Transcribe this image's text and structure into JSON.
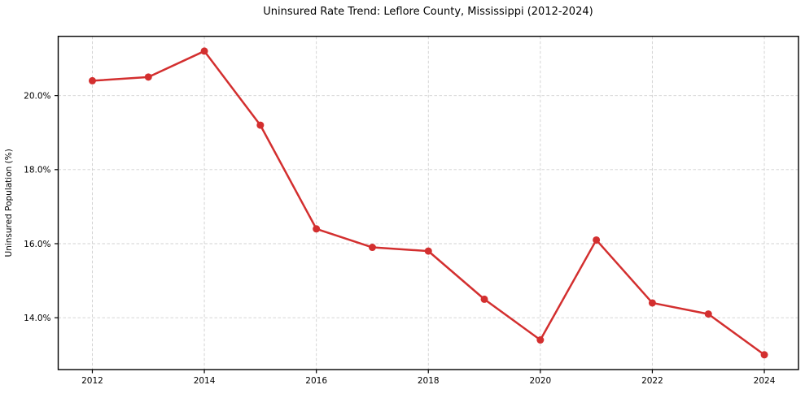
{
  "chart_data": {
    "type": "line",
    "title": "Uninsured Rate Trend: Leflore County, Mississippi (2012-2024)",
    "xlabel": "",
    "ylabel": "Uninsured Population (%)",
    "x": [
      2012,
      2013,
      2014,
      2015,
      2016,
      2017,
      2018,
      2019,
      2020,
      2021,
      2022,
      2023,
      2024
    ],
    "values": [
      20.4,
      20.5,
      21.2,
      19.2,
      16.4,
      15.9,
      15.8,
      14.5,
      13.4,
      16.1,
      14.4,
      14.1,
      13.0
    ],
    "series": [
      {
        "name": "Uninsured rate",
        "values": [
          20.4,
          20.5,
          21.2,
          19.2,
          16.4,
          15.9,
          15.8,
          14.5,
          13.4,
          16.1,
          14.4,
          14.1,
          13.0
        ]
      }
    ],
    "xticks": [
      {
        "value": 2012,
        "label": "2012"
      },
      {
        "value": 2014,
        "label": "2014"
      },
      {
        "value": 2016,
        "label": "2016"
      },
      {
        "value": 2018,
        "label": "2018"
      },
      {
        "value": 2020,
        "label": "2020"
      },
      {
        "value": 2022,
        "label": "2022"
      },
      {
        "value": 2024,
        "label": "2024"
      }
    ],
    "yticks": [
      {
        "value": 14,
        "label": "14.0%"
      },
      {
        "value": 16,
        "label": "16.0%"
      },
      {
        "value": 18,
        "label": "18.0%"
      },
      {
        "value": 20,
        "label": "20.0%"
      }
    ],
    "xlim": [
      2011.39,
      2024.61
    ],
    "ylim": [
      12.6,
      21.6
    ],
    "grid": true,
    "legend": "none",
    "colors": {
      "line": "#d32f2f",
      "marker": "#d32f2f",
      "grid": "#d0d0d0",
      "spine": "#000000",
      "background": "#ffffff"
    }
  }
}
